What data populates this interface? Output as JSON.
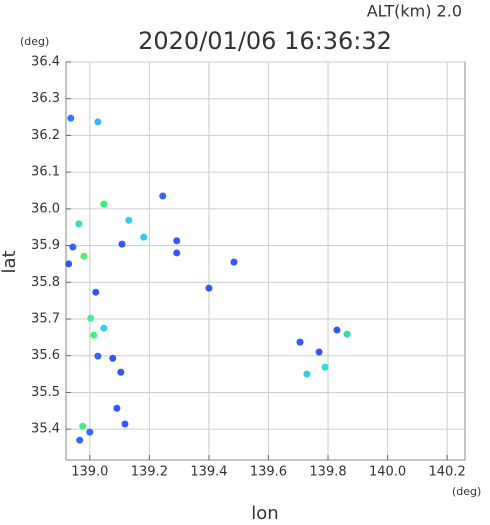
{
  "chart_data": {
    "type": "scatter",
    "title": "2020/01/06 16:36:32",
    "alt_label": "ALT(km)  2.0",
    "y_unit": "(deg)",
    "x_unit": "(deg)",
    "xlabel": "lon",
    "ylabel": "lat",
    "xlim": [
      138.92,
      140.26
    ],
    "ylim": [
      35.316,
      36.4
    ],
    "xticks": [
      {
        "value": 139,
        "label": "139.0"
      },
      139.2,
      139.4,
      139.6,
      139.8,
      {
        "value": 140,
        "label": "140.0"
      },
      140.2
    ],
    "yticks": [
      35.4,
      35.5,
      35.6,
      35.7,
      35.8,
      35.9,
      {
        "value": 36,
        "label": "36.0"
      },
      36.1,
      36.2,
      36.3,
      36.4
    ],
    "grid": true,
    "x": [
      138.936,
      139.027,
      138.963,
      139.047,
      138.943,
      138.98,
      138.929,
      139.02,
      139.003,
      139.013,
      139.047,
      139.027,
      139.077,
      139.104,
      138.976,
      139.0,
      138.966,
      139.118,
      139.131,
      139.108,
      139.181,
      139.245,
      139.292,
      139.484,
      139.4,
      139.706,
      139.79,
      139.77,
      139.729,
      139.83,
      139.864,
      139.091,
      139.292
    ],
    "values": [
      36.247,
      36.237,
      35.959,
      36.013,
      35.896,
      35.871,
      35.85,
      35.773,
      35.702,
      35.656,
      35.675,
      35.599,
      35.593,
      35.555,
      35.408,
      35.392,
      35.37,
      35.414,
      35.969,
      35.904,
      35.923,
      36.035,
      35.88,
      35.855,
      35.784,
      35.637,
      35.569,
      35.61,
      35.55,
      35.67,
      35.659,
      35.457,
      35.913
    ],
    "colors": [
      "#3377ff",
      "#33bbee",
      "#33ddcc",
      "#33ee77",
      "#3366ff",
      "#55ee66",
      "#3355ee",
      "#3355ff",
      "#44ee99",
      "#44ee88",
      "#33ccee",
      "#3366ff",
      "#3355ff",
      "#3355ee",
      "#44ee88",
      "#3366ff",
      "#3366ff",
      "#3355ff",
      "#33ccee",
      "#3355ff",
      "#33ccee",
      "#3366ff",
      "#3355ff",
      "#3355ff",
      "#3355ff",
      "#3355ff",
      "#33ddcc",
      "#3355ff",
      "#33ccee",
      "#3355ff",
      "#33ddaa",
      "#3355ff",
      "#3355ff"
    ]
  }
}
